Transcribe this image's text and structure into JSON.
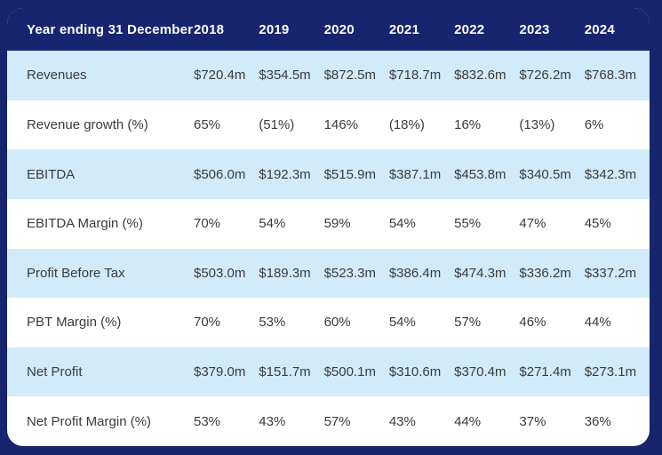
{
  "colors": {
    "navy": "#16256e",
    "row_alt": "#d1ebfb",
    "row_base": "#ffffff",
    "header_text": "#ffffff",
    "body_text": "#3b3b3b"
  },
  "chart_data": {
    "type": "table",
    "title": "Year ending 31 December",
    "columns": [
      "Year ending 31 December",
      "2018",
      "2019",
      "2020",
      "2021",
      "2022",
      "2023",
      "2024"
    ],
    "rows": [
      {
        "label": "Revenues",
        "values": [
          "$720.4m",
          "$354.5m",
          "$872.5m",
          "$718.7m",
          "$832.6m",
          "$726.2m",
          "$768.3m"
        ]
      },
      {
        "label": "Revenue growth (%)",
        "values": [
          "65%",
          "(51%)",
          "146%",
          "(18%)",
          "16%",
          "(13%)",
          "6%"
        ]
      },
      {
        "label": "EBITDA",
        "values": [
          "$506.0m",
          "$192.3m",
          "$515.9m",
          "$387.1m",
          "$453.8m",
          "$340.5m",
          "$342.3m"
        ]
      },
      {
        "label": "EBITDA Margin (%)",
        "values": [
          "70%",
          "54%",
          "59%",
          "54%",
          "55%",
          "47%",
          "45%"
        ]
      },
      {
        "label": "Profit Before Tax",
        "values": [
          "$503.0m",
          "$189.3m",
          "$523.3m",
          "$386.4m",
          "$474.3m",
          "$336.2m",
          "$337.2m"
        ]
      },
      {
        "label": "PBT Margin (%)",
        "values": [
          "70%",
          "53%",
          "60%",
          "54%",
          "57%",
          "46%",
          "44%"
        ]
      },
      {
        "label": "Net Profit",
        "values": [
          "$379.0m",
          "$151.7m",
          "$500.1m",
          "$310.6m",
          "$370.4m",
          "$271.4m",
          "$273.1m"
        ]
      },
      {
        "label": "Net Profit Margin (%)",
        "values": [
          "53%",
          "43%",
          "57%",
          "43%",
          "44%",
          "37%",
          "36%"
        ]
      }
    ],
    "layout": {
      "striped": true,
      "stripe_color": "#d1ebfb",
      "header_background": "#16256e",
      "first_row_striped": true
    }
  }
}
